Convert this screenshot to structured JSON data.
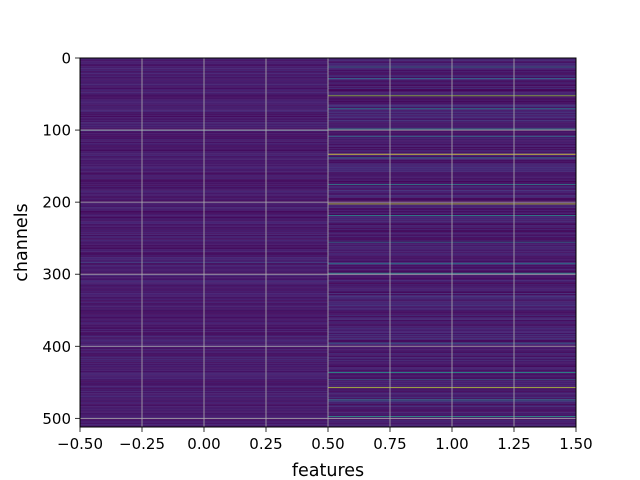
{
  "chart_data": {
    "type": "heatmap",
    "title": "",
    "xlabel": "features",
    "ylabel": "channels",
    "x_columns": [
      0,
      1
    ],
    "xlim": [
      -0.5,
      1.5
    ],
    "ylim": [
      512,
      0
    ],
    "y_inverted": true,
    "n_channels": 512,
    "colormap": "viridis",
    "value_range": [
      0,
      1
    ],
    "grid": true,
    "x_ticks": [
      {
        "value": -0.5,
        "label": "−0.50"
      },
      {
        "value": -0.25,
        "label": "−0.25"
      },
      {
        "value": 0.0,
        "label": "0.00"
      },
      {
        "value": 0.25,
        "label": "0.25"
      },
      {
        "value": 0.5,
        "label": "0.50"
      },
      {
        "value": 0.75,
        "label": "0.75"
      },
      {
        "value": 1.0,
        "label": "1.00"
      },
      {
        "value": 1.25,
        "label": "1.25"
      },
      {
        "value": 1.5,
        "label": "1.50"
      }
    ],
    "y_ticks": [
      {
        "value": 0,
        "label": "0"
      },
      {
        "value": 100,
        "label": "100"
      },
      {
        "value": 200,
        "label": "200"
      },
      {
        "value": 300,
        "label": "300"
      },
      {
        "value": 400,
        "label": "400"
      },
      {
        "value": 500,
        "label": "500"
      }
    ],
    "column_base_values": [
      0.06,
      0.045
    ],
    "highlighted_rows": [
      {
        "channel": 100,
        "column": 0,
        "value": 0.25
      },
      {
        "channel": 283,
        "column": 0,
        "value": 0.22
      },
      {
        "channel": 12,
        "column": 1,
        "value": 0.4
      },
      {
        "channel": 28,
        "column": 1,
        "value": 0.35
      },
      {
        "channel": 52,
        "column": 1,
        "value": 0.85
      },
      {
        "channel": 70,
        "column": 1,
        "value": 0.45
      },
      {
        "channel": 98,
        "column": 1,
        "value": 0.5
      },
      {
        "channel": 108,
        "column": 1,
        "value": 0.4
      },
      {
        "channel": 133,
        "column": 1,
        "value": 0.98
      },
      {
        "channel": 138,
        "column": 1,
        "value": 0.4
      },
      {
        "channel": 175,
        "column": 1,
        "value": 0.45
      },
      {
        "channel": 202,
        "column": 1,
        "value": 0.9
      },
      {
        "channel": 218,
        "column": 1,
        "value": 0.5
      },
      {
        "channel": 255,
        "column": 1,
        "value": 0.4
      },
      {
        "channel": 285,
        "column": 1,
        "value": 0.45
      },
      {
        "channel": 298,
        "column": 1,
        "value": 0.5
      },
      {
        "channel": 395,
        "column": 1,
        "value": 0.35
      },
      {
        "channel": 436,
        "column": 1,
        "value": 0.55
      },
      {
        "channel": 446,
        "column": 1,
        "value": 0.35
      },
      {
        "channel": 457,
        "column": 1,
        "value": 0.92
      },
      {
        "channel": 474,
        "column": 1,
        "value": 0.5
      },
      {
        "channel": 497,
        "column": 1,
        "value": 0.55
      }
    ]
  }
}
